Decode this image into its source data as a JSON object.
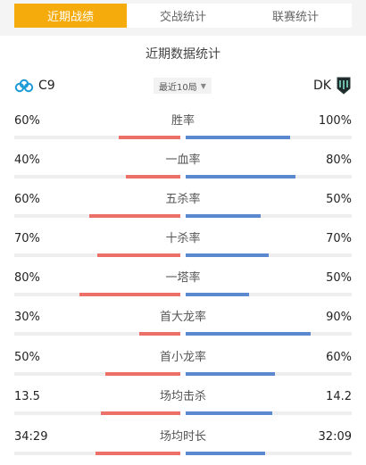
{
  "tabs": [
    {
      "label": "近期战绩",
      "active": true
    },
    {
      "label": "交战统计",
      "active": false
    },
    {
      "label": "联赛统计",
      "active": false
    }
  ],
  "section_title": "近期数据统计",
  "team_left": {
    "name": "C9",
    "logo_icon": "cloud9-logo-icon"
  },
  "team_right": {
    "name": "DK",
    "logo_icon": "dk-logo-icon"
  },
  "range_select": {
    "value": "最近10局"
  },
  "colors": {
    "accent": "#f5ab0c",
    "left_bar": "#ec7068",
    "right_bar": "#5b88cf"
  },
  "stats": [
    {
      "label": "胜率",
      "left": "60%",
      "right": "100%",
      "left_fill": 0.37,
      "right_fill": 0.63
    },
    {
      "label": "一血率",
      "left": "40%",
      "right": "80%",
      "left_fill": 0.33,
      "right_fill": 0.66
    },
    {
      "label": "五杀率",
      "left": "60%",
      "right": "50%",
      "left_fill": 0.55,
      "right_fill": 0.45
    },
    {
      "label": "十杀率",
      "left": "70%",
      "right": "70%",
      "left_fill": 0.5,
      "right_fill": 0.5
    },
    {
      "label": "一塔率",
      "left": "80%",
      "right": "50%",
      "left_fill": 0.61,
      "right_fill": 0.38
    },
    {
      "label": "首大龙率",
      "left": "30%",
      "right": "90%",
      "left_fill": 0.25,
      "right_fill": 0.75
    },
    {
      "label": "首小龙率",
      "left": "50%",
      "right": "60%",
      "left_fill": 0.45,
      "right_fill": 0.54
    },
    {
      "label": "场均击杀",
      "left": "13.5",
      "right": "14.2",
      "left_fill": 0.48,
      "right_fill": 0.52
    },
    {
      "label": "场均时长",
      "left": "34:29",
      "right": "32:09",
      "left_fill": 0.51,
      "right_fill": 0.48
    }
  ]
}
